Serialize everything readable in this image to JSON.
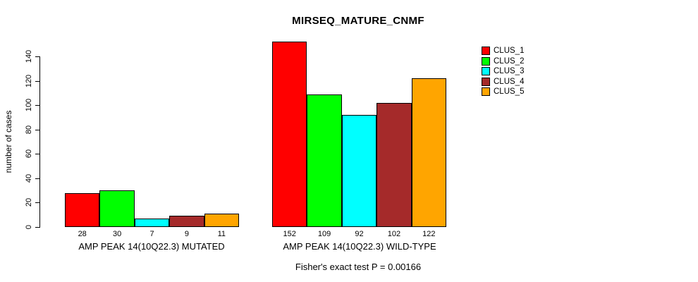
{
  "title": "MIRSEQ_MATURE_CNMF",
  "y_axis": {
    "label": "number of cases"
  },
  "footer": {
    "note": "Fisher's exact test P = 0.00166"
  },
  "chart_data": {
    "type": "bar",
    "title": "MIRSEQ_MATURE_CNMF",
    "xlabel": "",
    "ylabel": "number of cases",
    "ylim": [
      0,
      140
    ],
    "yticks": [
      0,
      20,
      40,
      60,
      80,
      100,
      120,
      140
    ],
    "grid": false,
    "legend_position": "top-right",
    "categories": [
      "AMP PEAK 14(10Q22.3) MUTATED",
      "AMP PEAK 14(10Q22.3) WILD-TYPE"
    ],
    "series": [
      {
        "name": "CLUS_1",
        "color": "#ff0000",
        "values": [
          28,
          152
        ]
      },
      {
        "name": "CLUS_2",
        "color": "#00ff00",
        "values": [
          30,
          109
        ]
      },
      {
        "name": "CLUS_3",
        "color": "#00ffff",
        "values": [
          7,
          92
        ]
      },
      {
        "name": "CLUS_4",
        "color": "#a52a2a",
        "values": [
          9,
          102
        ]
      },
      {
        "name": "CLUS_5",
        "color": "#ffa500",
        "values": [
          11,
          122
        ]
      }
    ],
    "bar_value_labels": [
      [
        "28",
        "30",
        "7",
        "9",
        "11"
      ],
      [
        "152",
        "109",
        "92",
        "102",
        "122"
      ]
    ],
    "annotation": "Fisher's exact test P = 0.00166"
  }
}
